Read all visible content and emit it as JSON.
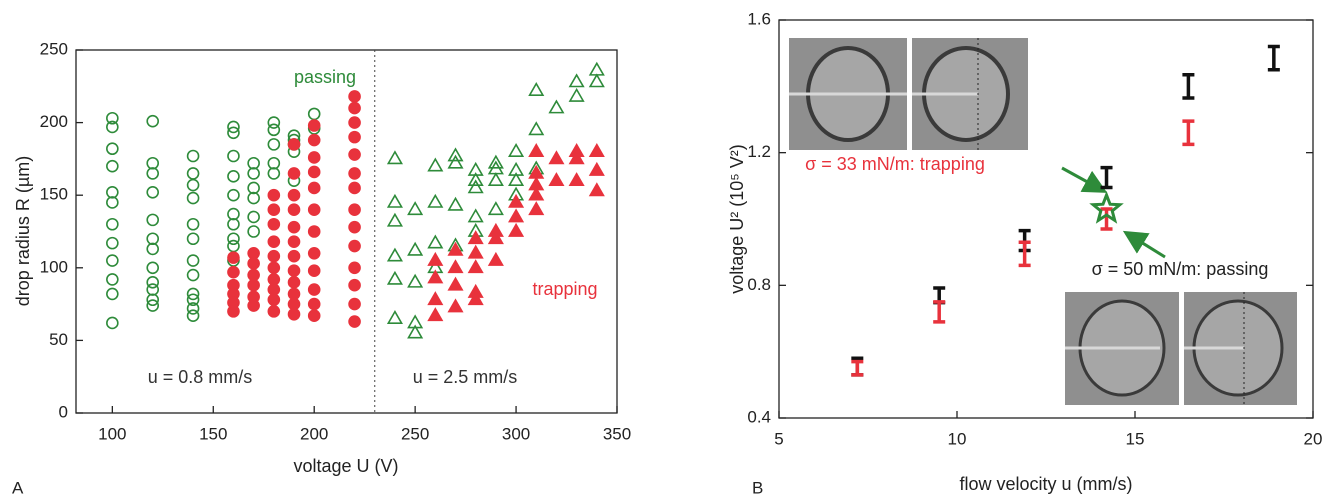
{
  "chart_data": [
    {
      "type": "scatter",
      "panel_label": "A",
      "xlabel": "voltage U (V)",
      "ylabel": "drop radius R (µm)",
      "xlim": [
        82,
        350
      ],
      "ylim": [
        0,
        250
      ],
      "xticks": [
        100,
        150,
        200,
        250,
        300,
        350
      ],
      "yticks": [
        0,
        50,
        100,
        150,
        200,
        250
      ],
      "vlines": [
        230
      ],
      "annotations": [
        {
          "text": "passing",
          "color": "#2e8b3a"
        },
        {
          "text": "trapping",
          "color": "#e8323c"
        },
        {
          "text": "u = 0.8 mm/s",
          "color": "#333333"
        },
        {
          "text": "u = 2.5 mm/s",
          "color": "#333333"
        }
      ],
      "series": [
        {
          "marker": "circle",
          "filled": false,
          "color": "#2e8b3a",
          "x": [
            100,
            100,
            100,
            100,
            100,
            100,
            100,
            100,
            100,
            100,
            100,
            100,
            120,
            120,
            120,
            120,
            120,
            120,
            120,
            120,
            120,
            120,
            120,
            120,
            140,
            140,
            140,
            140,
            140,
            140,
            140,
            140,
            140,
            140,
            140,
            140,
            160,
            160,
            160,
            160,
            160,
            160,
            160,
            160,
            160,
            160,
            170,
            170,
            170,
            170,
            170,
            170,
            180,
            180,
            180,
            180,
            180,
            190,
            190,
            190,
            190,
            190,
            200,
            200
          ],
          "values": [
            203,
            197,
            182,
            170,
            152,
            145,
            130,
            117,
            105,
            92,
            82,
            62,
            201,
            172,
            165,
            152,
            133,
            120,
            113,
            100,
            90,
            85,
            78,
            74,
            177,
            165,
            157,
            148,
            130,
            120,
            105,
            95,
            82,
            78,
            72,
            67,
            197,
            193,
            177,
            163,
            150,
            137,
            130,
            120,
            115,
            105,
            172,
            165,
            155,
            148,
            135,
            125,
            200,
            195,
            185,
            172,
            165,
            191,
            188,
            185,
            180,
            160,
            206,
            196
          ]
        },
        {
          "marker": "circle",
          "filled": true,
          "color": "#e8323c",
          "x": [
            160,
            160,
            160,
            160,
            160,
            160,
            170,
            170,
            170,
            170,
            170,
            170,
            180,
            180,
            180,
            180,
            180,
            180,
            180,
            180,
            180,
            180,
            190,
            190,
            190,
            190,
            190,
            190,
            190,
            190,
            190,
            190,
            190,
            190,
            200,
            200,
            200,
            200,
            200,
            200,
            200,
            200,
            200,
            200,
            200,
            200,
            220,
            220,
            220,
            220,
            220,
            220,
            220,
            220,
            220,
            220,
            220,
            220,
            220,
            220
          ],
          "values": [
            107,
            97,
            88,
            82,
            76,
            70,
            110,
            103,
            95,
            88,
            80,
            74,
            150,
            140,
            130,
            118,
            108,
            100,
            92,
            85,
            78,
            70,
            185,
            165,
            150,
            140,
            128,
            118,
            108,
            98,
            90,
            82,
            75,
            68,
            198,
            188,
            176,
            166,
            155,
            140,
            125,
            110,
            98,
            85,
            75,
            67,
            218,
            210,
            200,
            190,
            178,
            165,
            155,
            140,
            128,
            115,
            100,
            88,
            75,
            63
          ]
        },
        {
          "marker": "triangle",
          "filled": false,
          "color": "#2e8b3a",
          "x": [
            240,
            240,
            240,
            240,
            240,
            240,
            250,
            250,
            250,
            250,
            250,
            260,
            260,
            260,
            260,
            270,
            270,
            270,
            270,
            280,
            280,
            280,
            280,
            280,
            290,
            290,
            290,
            290,
            300,
            300,
            300,
            300,
            310,
            310,
            310,
            320,
            330,
            330,
            340,
            340
          ],
          "values": [
            175,
            145,
            132,
            108,
            92,
            65,
            140,
            112,
            90,
            62,
            55,
            170,
            145,
            117,
            100,
            177,
            172,
            143,
            115,
            167,
            160,
            155,
            135,
            125,
            172,
            168,
            160,
            140,
            180,
            167,
            160,
            150,
            222,
            195,
            168,
            210,
            228,
            218,
            236,
            228
          ]
        },
        {
          "marker": "triangle",
          "filled": true,
          "color": "#e8323c",
          "x": [
            260,
            260,
            260,
            260,
            270,
            270,
            270,
            270,
            280,
            280,
            280,
            280,
            280,
            290,
            290,
            290,
            300,
            300,
            300,
            310,
            310,
            310,
            310,
            310,
            320,
            320,
            330,
            330,
            330,
            340,
            340,
            340
          ],
          "values": [
            105,
            93,
            78,
            67,
            112,
            100,
            88,
            73,
            120,
            110,
            100,
            83,
            78,
            125,
            120,
            105,
            145,
            135,
            125,
            180,
            165,
            157,
            150,
            140,
            175,
            160,
            180,
            175,
            160,
            180,
            167,
            153
          ]
        }
      ]
    },
    {
      "type": "errorbar",
      "panel_label": "B",
      "xlabel": "flow velocity u (mm/s)",
      "ylabel": "voltage U² (10⁵ V²)",
      "xlim": [
        5,
        20
      ],
      "ylim": [
        0.4,
        1.6
      ],
      "xticks": [
        5,
        10,
        15,
        20
      ],
      "yticks": [
        0.4,
        0.8,
        1.2,
        1.6
      ],
      "annotations": [
        {
          "text": "σ = 33 mN/m: trapping",
          "color": "#e8323c"
        },
        {
          "text": "σ = 50 mN/m: passing",
          "color": "#222222"
        }
      ],
      "series": [
        {
          "marker": "bar",
          "color": "#111111",
          "x": [
            7.2,
            9.5,
            11.9,
            14.2,
            16.5,
            18.9
          ],
          "values": [
            0.555,
            0.77,
            0.935,
            1.125,
            1.4,
            1.485
          ],
          "errors": [
            0.025,
            0.022,
            0.03,
            0.03,
            0.035,
            0.035
          ]
        },
        {
          "marker": "bar",
          "color": "#e8323c",
          "x": [
            7.2,
            9.5,
            11.9,
            14.2,
            16.5
          ],
          "values": [
            0.55,
            0.72,
            0.895,
            1.0,
            1.26
          ],
          "errors": [
            0.02,
            0.03,
            0.035,
            0.03,
            0.035
          ]
        },
        {
          "marker": "star",
          "color": "#2e8b3a",
          "x": [
            14.2
          ],
          "values": [
            1.03
          ]
        }
      ]
    }
  ]
}
